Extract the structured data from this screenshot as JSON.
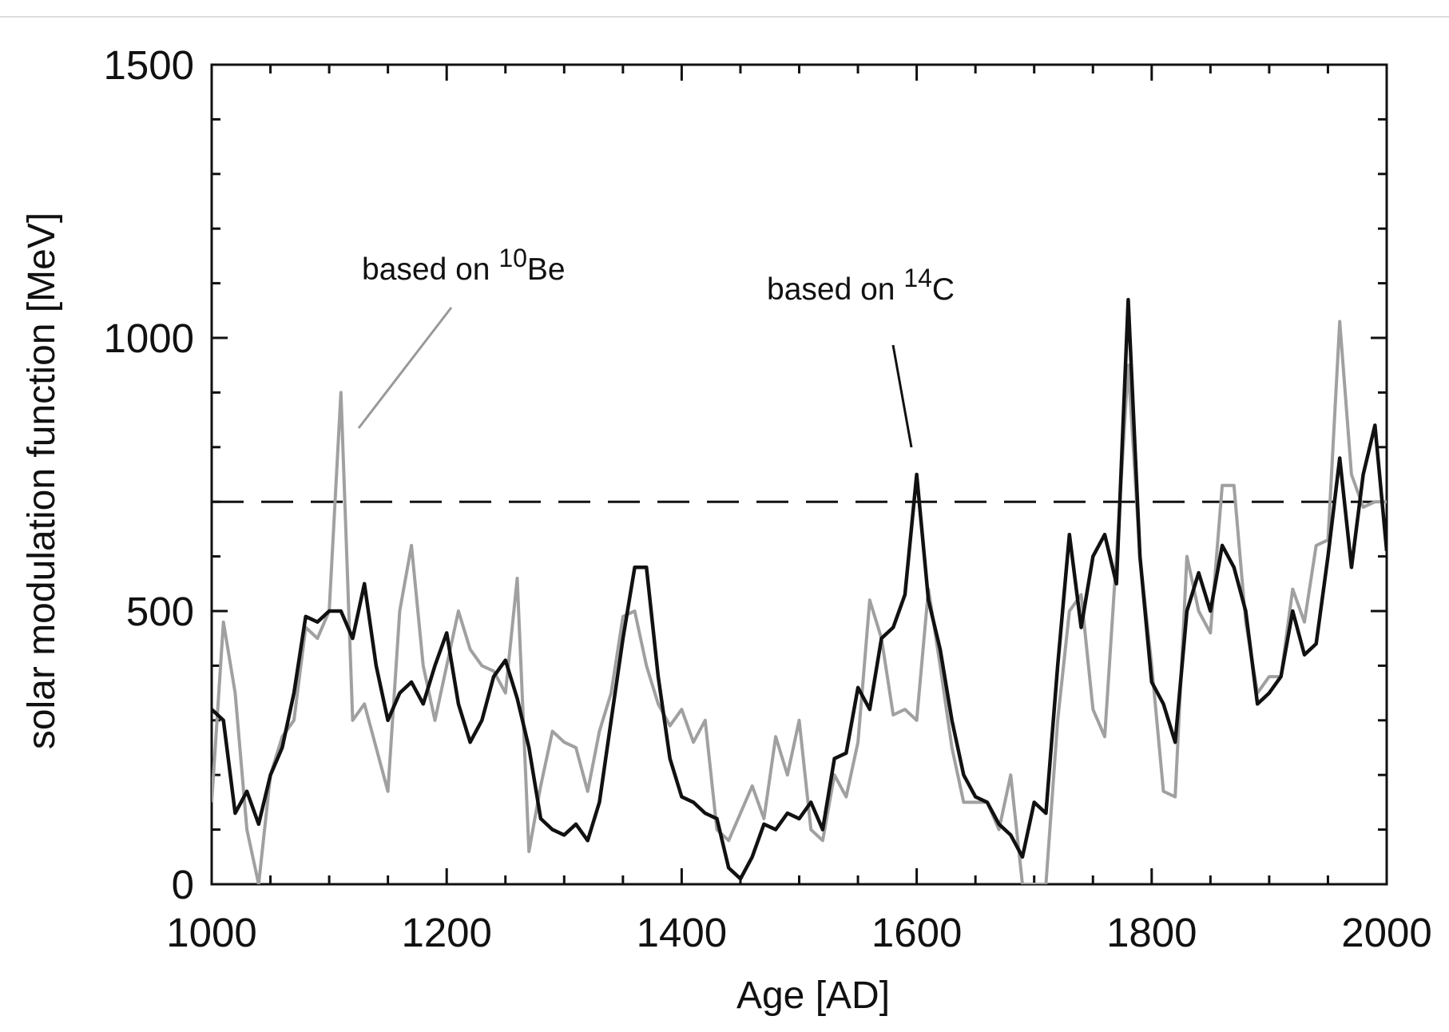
{
  "chart_data": {
    "type": "line",
    "xlabel": "Age [AD]",
    "ylabel": "solar modulation function [MeV]",
    "x": [
      1000,
      1010,
      1020,
      1030,
      1040,
      1050,
      1060,
      1070,
      1080,
      1090,
      1100,
      1110,
      1120,
      1130,
      1140,
      1150,
      1160,
      1170,
      1180,
      1190,
      1200,
      1210,
      1220,
      1230,
      1240,
      1250,
      1260,
      1270,
      1280,
      1290,
      1300,
      1310,
      1320,
      1330,
      1340,
      1350,
      1360,
      1370,
      1380,
      1390,
      1400,
      1410,
      1420,
      1430,
      1440,
      1450,
      1460,
      1470,
      1480,
      1490,
      1500,
      1510,
      1520,
      1530,
      1540,
      1550,
      1560,
      1570,
      1580,
      1590,
      1600,
      1610,
      1620,
      1630,
      1640,
      1650,
      1660,
      1670,
      1680,
      1690,
      1700,
      1710,
      1720,
      1730,
      1740,
      1750,
      1760,
      1770,
      1780,
      1790,
      1800,
      1810,
      1820,
      1830,
      1840,
      1850,
      1860,
      1870,
      1880,
      1890,
      1900,
      1910,
      1920,
      1930,
      1940,
      1950,
      1960,
      1970,
      1980,
      1990,
      2000
    ],
    "series": [
      {
        "color": "#a0a0a0",
        "values": [
          150,
          480,
          350,
          100,
          0,
          200,
          270,
          300,
          470,
          450,
          500,
          900,
          300,
          330,
          250,
          170,
          500,
          620,
          400,
          300,
          400,
          500,
          430,
          400,
          390,
          350,
          560,
          60,
          180,
          280,
          260,
          250,
          170,
          280,
          350,
          490,
          500,
          400,
          330,
          290,
          320,
          260,
          300,
          100,
          80,
          130,
          180,
          120,
          270,
          200,
          300,
          100,
          80,
          200,
          160,
          260,
          520,
          450,
          310,
          320,
          300,
          540,
          400,
          250,
          150,
          150,
          150,
          100,
          200,
          0,
          0,
          0,
          300,
          500,
          530,
          320,
          270,
          600,
          950,
          600,
          400,
          170,
          160,
          600,
          500,
          460,
          730,
          730,
          480,
          350,
          380,
          380,
          540,
          480,
          620,
          630,
          1030,
          750,
          690,
          700,
          700
        ]
      },
      {
        "color": "#111111",
        "values": [
          320,
          300,
          130,
          170,
          110,
          200,
          250,
          350,
          490,
          480,
          500,
          500,
          450,
          550,
          400,
          300,
          350,
          370,
          330,
          400,
          460,
          330,
          260,
          300,
          380,
          410,
          340,
          250,
          120,
          100,
          90,
          110,
          80,
          150,
          300,
          450,
          580,
          580,
          380,
          230,
          160,
          150,
          130,
          120,
          30,
          10,
          50,
          110,
          100,
          130,
          120,
          150,
          100,
          230,
          240,
          360,
          320,
          450,
          470,
          530,
          750,
          520,
          430,
          300,
          200,
          160,
          150,
          110,
          90,
          50,
          150,
          130,
          400,
          640,
          470,
          600,
          640,
          550,
          1070,
          600,
          370,
          330,
          260,
          500,
          570,
          500,
          620,
          580,
          500,
          330,
          350,
          380,
          500,
          420,
          440,
          600,
          780,
          580,
          750,
          840,
          610
        ]
      }
    ],
    "annotations": [
      {
        "text": "based on ",
        "sup": "10",
        "after": "Be"
      },
      {
        "text": "based on ",
        "sup": "14",
        "after": "C"
      }
    ],
    "reference_line": 700,
    "xlim": [
      1000,
      2000
    ],
    "xticks": [
      1000,
      1200,
      1400,
      1600,
      1800,
      2000
    ],
    "xminorticks": [
      1050,
      1100,
      1150,
      1250,
      1300,
      1350,
      1450,
      1500,
      1550,
      1650,
      1700,
      1750,
      1850,
      1900,
      1950
    ],
    "ylim": [
      0,
      1500
    ],
    "yticks": [
      0,
      500,
      1000,
      1500
    ],
    "yminorticks": [
      100,
      200,
      300,
      400,
      600,
      700,
      800,
      900,
      1100,
      1200,
      1300,
      1400
    ]
  }
}
